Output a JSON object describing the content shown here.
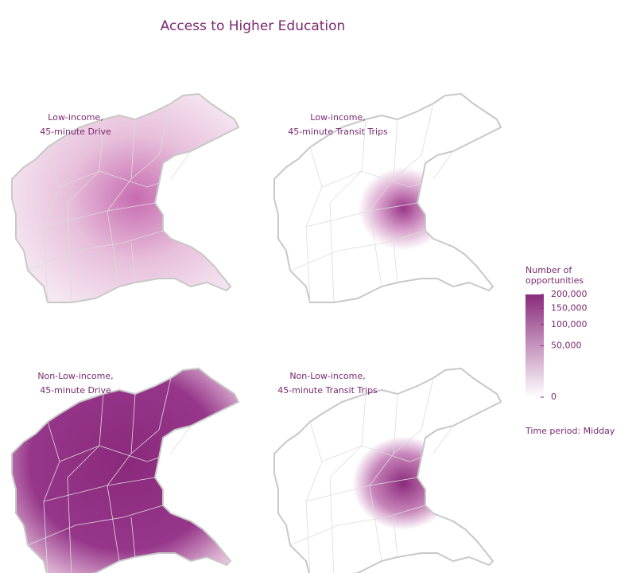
{
  "title": "Access to Higher Education",
  "panels": [
    {
      "label": [
        "Low-income,",
        "45-minute Drive"
      ]
    },
    {
      "label": [
        "Low-income,",
        "45-minute Transit Trips"
      ]
    },
    {
      "label": [
        "Non-Low-income,",
        "45-minute Drive"
      ]
    },
    {
      "label": [
        "Non-Low-income,",
        "45-minute Transit Trips"
      ]
    }
  ],
  "legend": {
    "title": [
      "Number of",
      "opportunities"
    ],
    "scale": "sqrt",
    "range": [
      0,
      200000
    ],
    "ticks": [
      0,
      {
        "value": 50000,
        "label": "50,000"
      },
      {
        "value": 100000,
        "label": "100,000"
      },
      {
        "value": 150000,
        "label": "150,000"
      },
      {
        "value": 200000,
        "label": "200,000"
      }
    ],
    "colors": [
      "#ffffff",
      "#8b2a7c"
    ]
  },
  "note": "Time period: Midday"
}
